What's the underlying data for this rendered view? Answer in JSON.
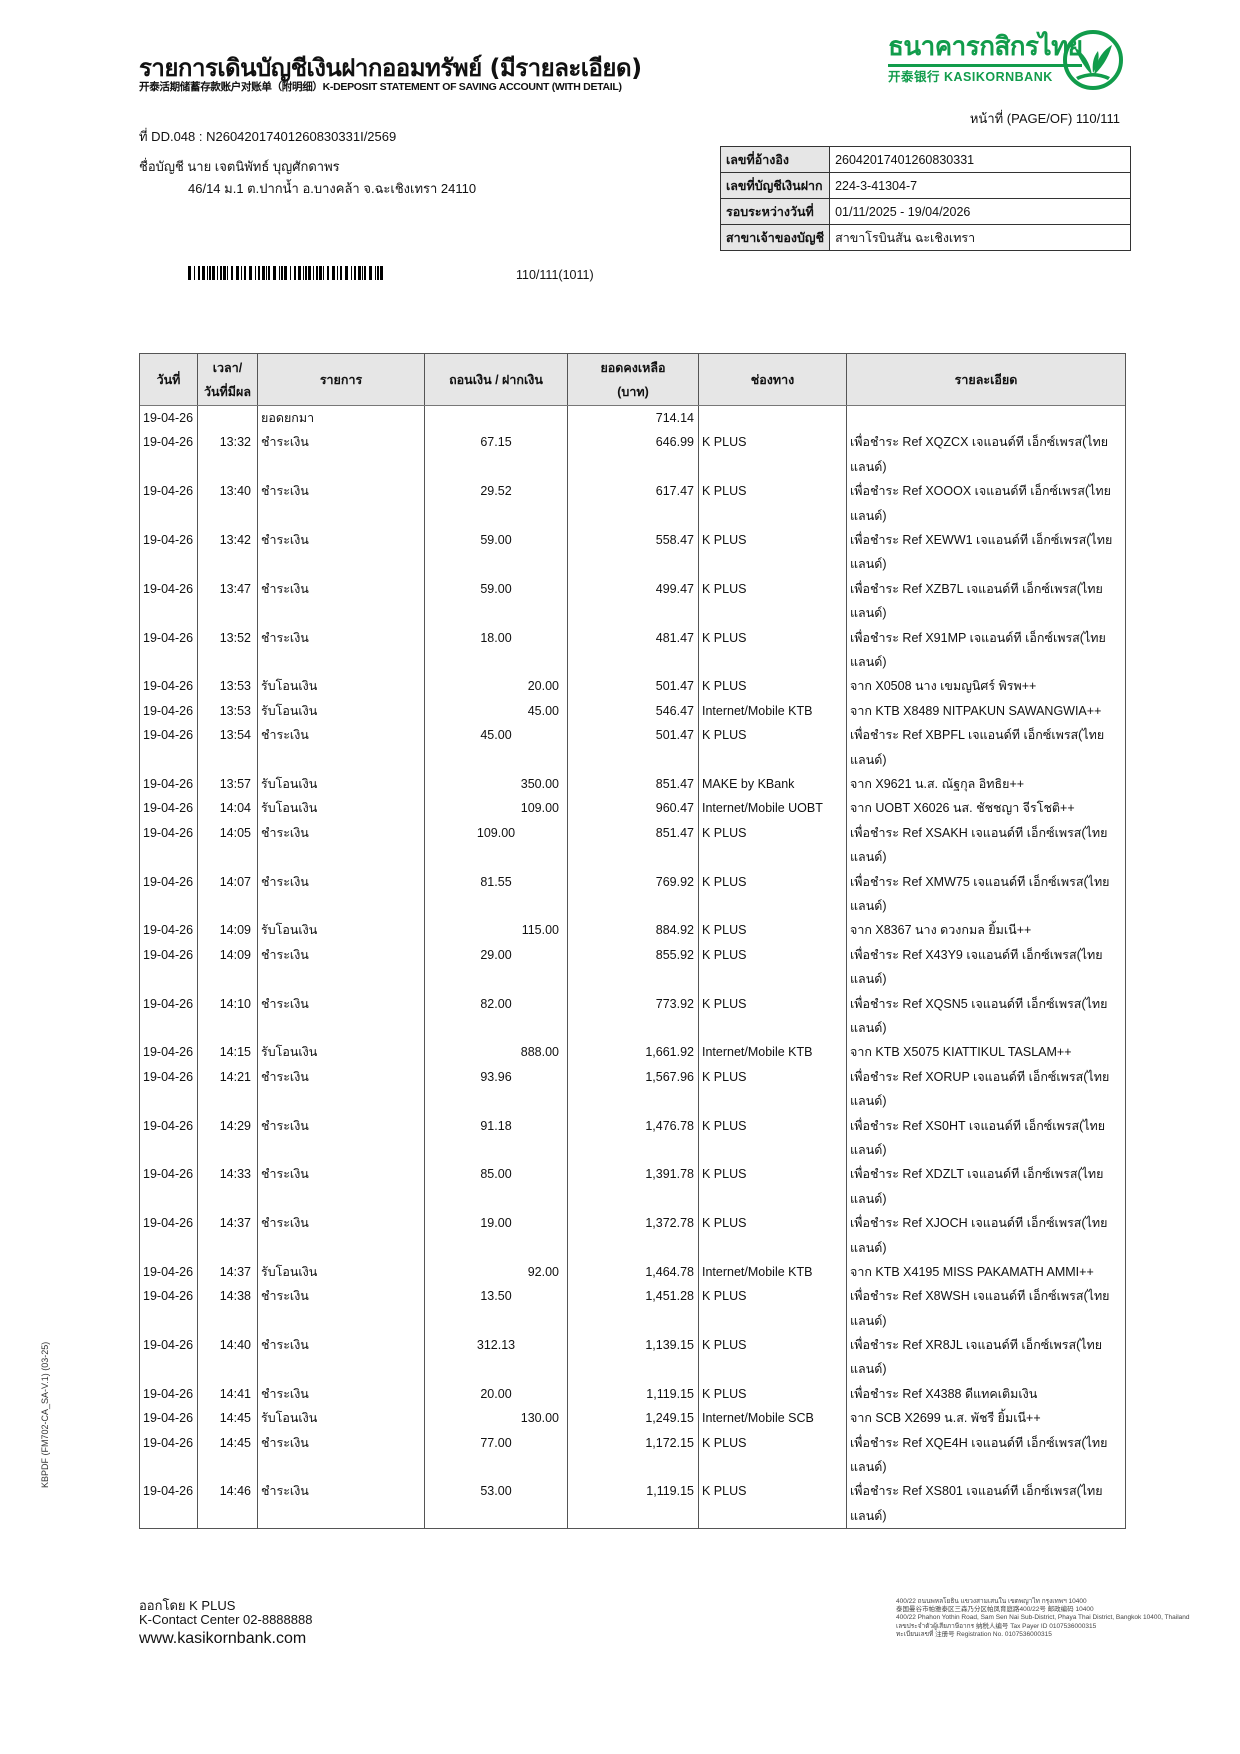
{
  "header": {
    "title": "รายการเดินบัญชีเงินฝากออมทรัพย์ (มีรายละเอียด)",
    "subtitle": "开泰活期储蓄存款账户对账单（附明细）K-DEPOSIT STATEMENT OF SAVING ACCOUNT (WITH DETAIL)",
    "doc_no": "ที่ DD.048 : N26042017401260830331I/2569",
    "account_name": "ชื่อบัญชี  นาย เจตนิพัทธ์ บุญศักดาพร",
    "account_address": "46/14 ม.1 ต.ปากน้ำ อ.บางคล้า จ.ฉะเชิงเทรา 24110",
    "page": "หน้าที่ (PAGE/OF) 110/111",
    "barcode_number": "110/111(1011)"
  },
  "logo": {
    "thai": "ธนาคารกสิกรไทย",
    "english": "开泰银行 KASIKORNBANK",
    "color": "#119c4b"
  },
  "info": [
    {
      "label": "เลขที่อ้างอิง",
      "value": "26042017401260830331"
    },
    {
      "label": "เลขที่บัญชีเงินฝาก",
      "value": "224-3-41304-7"
    },
    {
      "label": "รอบระหว่างวันที่",
      "value": "01/11/2025 - 19/04/2026"
    },
    {
      "label": "สาขาเจ้าของบัญชี",
      "value": "สาขาโรบินสัน ฉะเชิงเทรา"
    }
  ],
  "table": {
    "headers": [
      "วันที่",
      "เวลา/\nวันที่มีผล",
      "รายการ",
      "ถอนเงิน / ฝากเงิน",
      "ยอดคงเหลือ\n(บาท)",
      "ช่องทาง",
      "รายละเอียด"
    ],
    "rows": [
      {
        "date": "19-04-26",
        "time": "",
        "type": "ยอดยกมา",
        "amount": "",
        "kind": "",
        "balance": "714.14",
        "channel": "",
        "detail": []
      },
      {
        "date": "19-04-26",
        "time": "13:32",
        "type": "ชำระเงิน",
        "amount": "67.15",
        "kind": "w",
        "balance": "646.99",
        "channel": "K PLUS",
        "detail": [
          "เพื่อชำระ Ref XQZCX เจแอนด์ที เอ็กซ์เพรส(ไทย",
          "แลนด์)"
        ]
      },
      {
        "date": "19-04-26",
        "time": "13:40",
        "type": "ชำระเงิน",
        "amount": "29.52",
        "kind": "w",
        "balance": "617.47",
        "channel": "K PLUS",
        "detail": [
          "เพื่อชำระ Ref XOOOX เจแอนด์ที เอ็กซ์เพรส(ไทย",
          "แลนด์)"
        ]
      },
      {
        "date": "19-04-26",
        "time": "13:42",
        "type": "ชำระเงิน",
        "amount": "59.00",
        "kind": "w",
        "balance": "558.47",
        "channel": "K PLUS",
        "detail": [
          "เพื่อชำระ Ref XEWW1 เจแอนด์ที เอ็กซ์เพรส(ไทย",
          "แลนด์)"
        ]
      },
      {
        "date": "19-04-26",
        "time": "13:47",
        "type": "ชำระเงิน",
        "amount": "59.00",
        "kind": "w",
        "balance": "499.47",
        "channel": "K PLUS",
        "detail": [
          "เพื่อชำระ Ref XZB7L เจแอนด์ที เอ็กซ์เพรส(ไทย",
          "แลนด์)"
        ]
      },
      {
        "date": "19-04-26",
        "time": "13:52",
        "type": "ชำระเงิน",
        "amount": "18.00",
        "kind": "w",
        "balance": "481.47",
        "channel": "K PLUS",
        "detail": [
          "เพื่อชำระ Ref X91MP เจแอนด์ที เอ็กซ์เพรส(ไทย",
          "แลนด์)"
        ]
      },
      {
        "date": "19-04-26",
        "time": "13:53",
        "type": "รับโอนเงิน",
        "amount": "20.00",
        "kind": "d",
        "balance": "501.47",
        "channel": "K PLUS",
        "detail": [
          "จาก X0508 นาง เขมญนิศร์ พิรพ++"
        ]
      },
      {
        "date": "19-04-26",
        "time": "13:53",
        "type": "รับโอนเงิน",
        "amount": "45.00",
        "kind": "d",
        "balance": "546.47",
        "channel": "Internet/Mobile KTB",
        "detail": [
          "จาก KTB X8489 NITPAKUN SAWANGWIA++"
        ]
      },
      {
        "date": "19-04-26",
        "time": "13:54",
        "type": "ชำระเงิน",
        "amount": "45.00",
        "kind": "w",
        "balance": "501.47",
        "channel": "K PLUS",
        "detail": [
          "เพื่อชำระ Ref XBPFL เจแอนด์ที เอ็กซ์เพรส(ไทย",
          "แลนด์)"
        ]
      },
      {
        "date": "19-04-26",
        "time": "13:57",
        "type": "รับโอนเงิน",
        "amount": "350.00",
        "kind": "d",
        "balance": "851.47",
        "channel": "MAKE by KBank",
        "detail": [
          "จาก X9621 น.ส. ณัฐกุล อิทธิย++"
        ]
      },
      {
        "date": "19-04-26",
        "time": "14:04",
        "type": "รับโอนเงิน",
        "amount": "109.00",
        "kind": "d",
        "balance": "960.47",
        "channel": "Internet/Mobile UOBT",
        "detail": [
          "จาก UOBT X6026 นส. ชัชชญา จีรโชติ++"
        ]
      },
      {
        "date": "19-04-26",
        "time": "14:05",
        "type": "ชำระเงิน",
        "amount": "109.00",
        "kind": "w",
        "balance": "851.47",
        "channel": "K PLUS",
        "detail": [
          "เพื่อชำระ Ref XSAKH เจแอนด์ที เอ็กซ์เพรส(ไทย",
          "แลนด์)"
        ]
      },
      {
        "date": "19-04-26",
        "time": "14:07",
        "type": "ชำระเงิน",
        "amount": "81.55",
        "kind": "w",
        "balance": "769.92",
        "channel": "K PLUS",
        "detail": [
          "เพื่อชำระ Ref XMW75 เจแอนด์ที เอ็กซ์เพรส(ไทย",
          "แลนด์)"
        ]
      },
      {
        "date": "19-04-26",
        "time": "14:09",
        "type": "รับโอนเงิน",
        "amount": "115.00",
        "kind": "d",
        "balance": "884.92",
        "channel": "K PLUS",
        "detail": [
          "จาก X8367 นาง ดวงกมล ยิ้มเนี++"
        ]
      },
      {
        "date": "19-04-26",
        "time": "14:09",
        "type": "ชำระเงิน",
        "amount": "29.00",
        "kind": "w",
        "balance": "855.92",
        "channel": "K PLUS",
        "detail": [
          "เพื่อชำระ Ref X43Y9 เจแอนด์ที เอ็กซ์เพรส(ไทย",
          "แลนด์)"
        ]
      },
      {
        "date": "19-04-26",
        "time": "14:10",
        "type": "ชำระเงิน",
        "amount": "82.00",
        "kind": "w",
        "balance": "773.92",
        "channel": "K PLUS",
        "detail": [
          "เพื่อชำระ Ref XQSN5 เจแอนด์ที เอ็กซ์เพรส(ไทย",
          "แลนด์)"
        ]
      },
      {
        "date": "19-04-26",
        "time": "14:15",
        "type": "รับโอนเงิน",
        "amount": "888.00",
        "kind": "d",
        "balance": "1,661.92",
        "channel": "Internet/Mobile KTB",
        "detail": [
          "จาก KTB X5075 KIATTIKUL TASLAM++"
        ]
      },
      {
        "date": "19-04-26",
        "time": "14:21",
        "type": "ชำระเงิน",
        "amount": "93.96",
        "kind": "w",
        "balance": "1,567.96",
        "channel": "K PLUS",
        "detail": [
          "เพื่อชำระ Ref XORUP เจแอนด์ที เอ็กซ์เพรส(ไทย",
          "แลนด์)"
        ]
      },
      {
        "date": "19-04-26",
        "time": "14:29",
        "type": "ชำระเงิน",
        "amount": "91.18",
        "kind": "w",
        "balance": "1,476.78",
        "channel": "K PLUS",
        "detail": [
          "เพื่อชำระ Ref XS0HT เจแอนด์ที เอ็กซ์เพรส(ไทย",
          "แลนด์)"
        ]
      },
      {
        "date": "19-04-26",
        "time": "14:33",
        "type": "ชำระเงิน",
        "amount": "85.00",
        "kind": "w",
        "balance": "1,391.78",
        "channel": "K PLUS",
        "detail": [
          "เพื่อชำระ Ref XDZLT เจแอนด์ที เอ็กซ์เพรส(ไทย",
          "แลนด์)"
        ]
      },
      {
        "date": "19-04-26",
        "time": "14:37",
        "type": "ชำระเงิน",
        "amount": "19.00",
        "kind": "w",
        "balance": "1,372.78",
        "channel": "K PLUS",
        "detail": [
          "เพื่อชำระ Ref XJOCH เจแอนด์ที เอ็กซ์เพรส(ไทย",
          "แลนด์)"
        ]
      },
      {
        "date": "19-04-26",
        "time": "14:37",
        "type": "รับโอนเงิน",
        "amount": "92.00",
        "kind": "d",
        "balance": "1,464.78",
        "channel": "Internet/Mobile KTB",
        "detail": [
          "จาก KTB X4195 MISS PAKAMATH AMMI++"
        ]
      },
      {
        "date": "19-04-26",
        "time": "14:38",
        "type": "ชำระเงิน",
        "amount": "13.50",
        "kind": "w",
        "balance": "1,451.28",
        "channel": "K PLUS",
        "detail": [
          "เพื่อชำระ Ref X8WSH เจแอนด์ที เอ็กซ์เพรส(ไทย",
          "แลนด์)"
        ]
      },
      {
        "date": "19-04-26",
        "time": "14:40",
        "type": "ชำระเงิน",
        "amount": "312.13",
        "kind": "w",
        "balance": "1,139.15",
        "channel": "K PLUS",
        "detail": [
          "เพื่อชำระ Ref XR8JL เจแอนด์ที เอ็กซ์เพรส(ไทย",
          "แลนด์)"
        ]
      },
      {
        "date": "19-04-26",
        "time": "14:41",
        "type": "ชำระเงิน",
        "amount": "20.00",
        "kind": "w",
        "balance": "1,119.15",
        "channel": "K PLUS",
        "detail": [
          "เพื่อชำระ Ref X4388 ดีแทคเติมเงิน"
        ]
      },
      {
        "date": "19-04-26",
        "time": "14:45",
        "type": "รับโอนเงิน",
        "amount": "130.00",
        "kind": "d",
        "balance": "1,249.15",
        "channel": "Internet/Mobile SCB",
        "detail": [
          "จาก SCB X2699 น.ส. พัชรี ยิ้มเนี++"
        ]
      },
      {
        "date": "19-04-26",
        "time": "14:45",
        "type": "ชำระเงิน",
        "amount": "77.00",
        "kind": "w",
        "balance": "1,172.15",
        "channel": "K PLUS",
        "detail": [
          "เพื่อชำระ Ref XQE4H เจแอนด์ที เอ็กซ์เพรส(ไทย",
          "แลนด์)"
        ]
      },
      {
        "date": "19-04-26",
        "time": "14:46",
        "type": "ชำระเงิน",
        "amount": "53.00",
        "kind": "w",
        "balance": "1,119.15",
        "channel": "K PLUS",
        "detail": [
          "เพื่อชำระ Ref XS801 เจแอนด์ที เอ็กซ์เพรส(ไทย",
          "แลนด์)"
        ]
      }
    ]
  },
  "side_code": "KBPDF (FM702-CA_SA-V.1) (03-25)",
  "footer": {
    "issued_by": "ออกโดย K PLUS",
    "contact": "K-Contact Center 02-8888888",
    "website": "www.kasikornbank.com",
    "address_lines": [
      "400/22 ถนนพหลโยธิน แขวงสามเสนใน เขตพญาไท กรุงเทพฯ 10400",
      "泰国曼谷市帕雅泰区三森乃分区帕凤育庭路400/22号 邮政编码 10400",
      "400/22 Phahon Yothin Road, Sam Sen Nai Sub-District, Phaya Thai District, Bangkok 10400, Thailand",
      "เลขประจำตัวผู้เสียภาษีอากร 纳税人编号 Tax Payer ID 0107536000315",
      "ทะเบียนเลขที่ 注册号 Registration No. 0107536000315"
    ]
  }
}
